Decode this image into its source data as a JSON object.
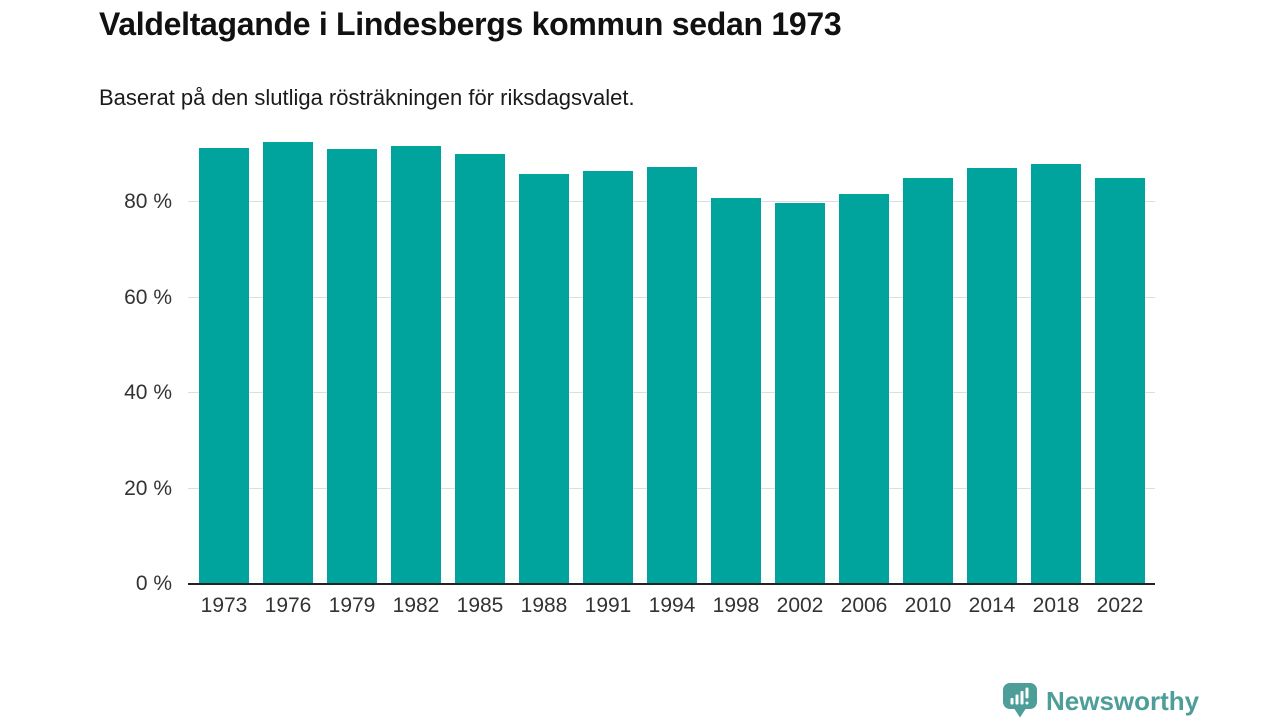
{
  "header": {
    "title": "Valdeltagande i Lindesbergs kommun sedan 1973",
    "subtitle": "Baserat på den slutliga rösträkningen för riksdagsvalet."
  },
  "chart_data": {
    "type": "bar",
    "title": "Valdeltagande i Lindesbergs kommun sedan 1973",
    "subtitle": "Baserat på den slutliga rösträkningen för riksdagsvalet.",
    "categories": [
      "1973",
      "1976",
      "1979",
      "1982",
      "1985",
      "1988",
      "1991",
      "1994",
      "1998",
      "2002",
      "2006",
      "2010",
      "2014",
      "2018",
      "2022"
    ],
    "values": [
      91.1,
      92.4,
      90.8,
      91.6,
      89.9,
      85.6,
      86.3,
      87.2,
      80.6,
      79.5,
      81.5,
      84.8,
      86.9,
      87.8,
      84.8
    ],
    "unit": "%",
    "xlabel": "",
    "ylabel": "",
    "ylim": [
      0,
      100
    ],
    "y_ticks": [
      {
        "value": 0,
        "label": "0 %"
      },
      {
        "value": 20,
        "label": "20 %"
      },
      {
        "value": 40,
        "label": "40 %"
      },
      {
        "value": 60,
        "label": "60 %"
      },
      {
        "value": 80,
        "label": "80 %"
      }
    ],
    "grid": true,
    "legend": "none",
    "bar_color": "#00a49c"
  },
  "colors": {
    "bar": "#00a49c",
    "gridline": "#dedede",
    "axis_line": "#222222",
    "tick_text": "#333333",
    "title_text": "#111111",
    "brand_teal": "#4d9e99"
  },
  "footer": {
    "brand": "Newsworthy"
  }
}
